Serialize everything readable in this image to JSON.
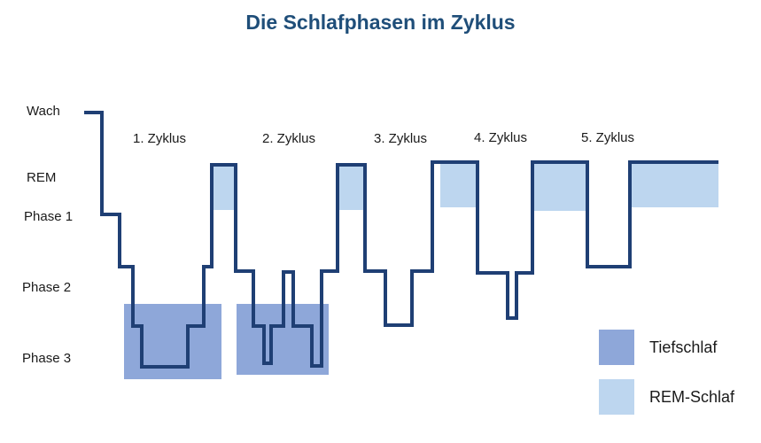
{
  "title": "Die Schlafphasen im Zyklus",
  "colors": {
    "title": "#1f4e79",
    "line": "#1f3f74",
    "deep_sleep": "#8ea7d9",
    "rem_sleep": "#bdd6ef"
  },
  "chart_data": {
    "type": "line",
    "title": "Die Schlafphasen im Zyklus",
    "y_levels": [
      "Wach",
      "REM",
      "Phase 1",
      "Phase 2",
      "Phase 3"
    ],
    "cycles": [
      "1. Zyklus",
      "2. Zyklus",
      "3. Zyklus",
      "4. Zyklus",
      "5. Zyklus"
    ],
    "legend": [
      {
        "label": "Tiefschlaf",
        "color": "#8ea7d9"
      },
      {
        "label": "REM-Schlaf",
        "color": "#bdd6ef"
      }
    ],
    "legend_position": "bottom-right"
  }
}
